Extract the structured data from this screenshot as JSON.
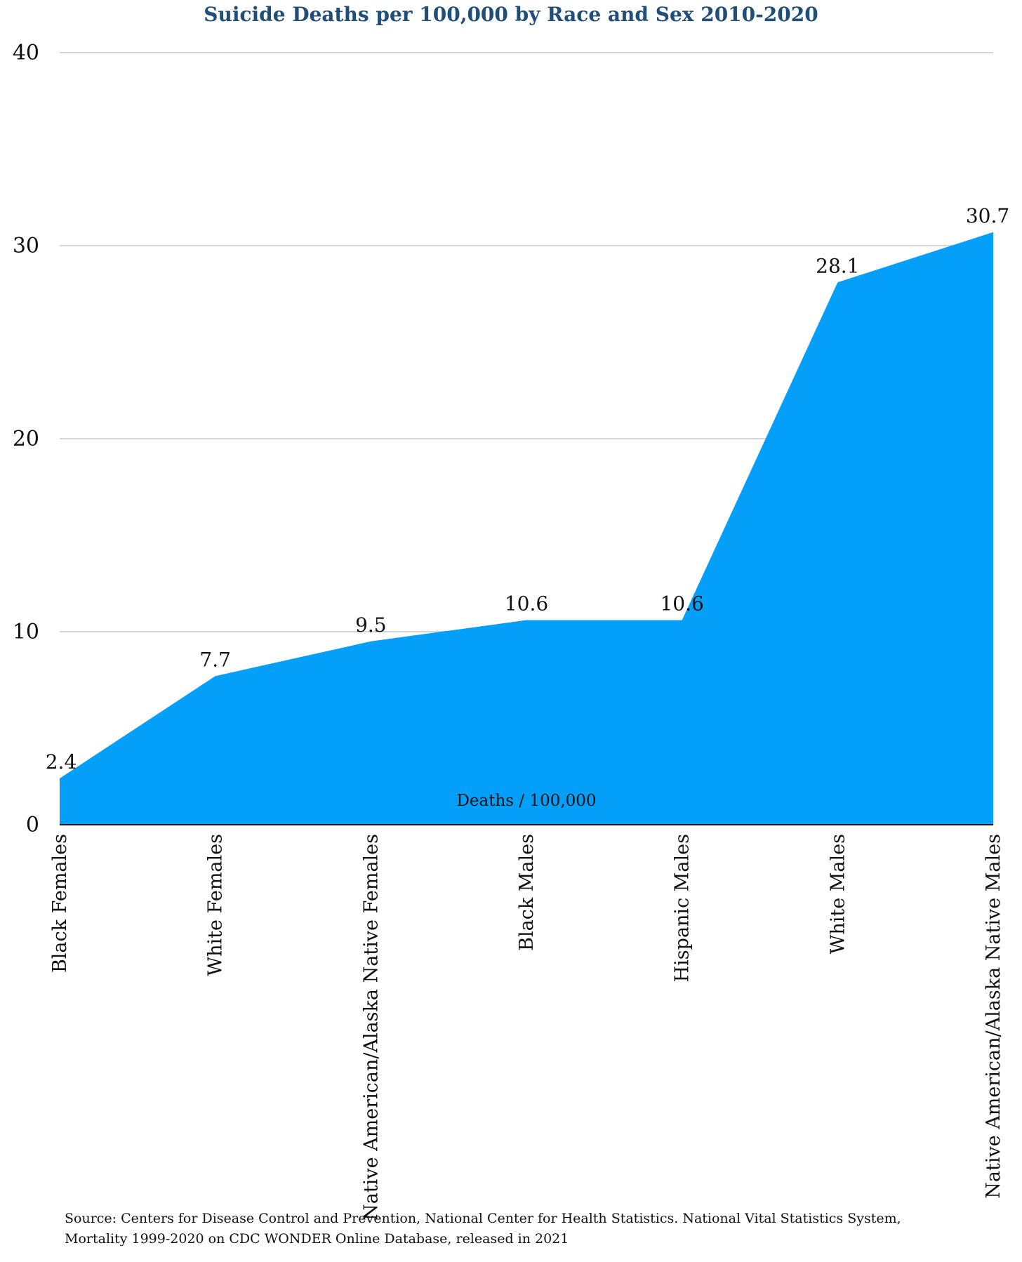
{
  "chart_data": {
    "type": "area",
    "title": "Suicide Deaths per 100,000 by Race and Sex 2010-2020",
    "categories": [
      "Black Females",
      "White Females",
      "Native American/Alaska Native Females",
      "Black Males",
      "Hispanic Males",
      "White Males",
      "Native American/Alaska Native Males"
    ],
    "series": [
      {
        "name": "Deaths / 100,000",
        "values": [
          2.4,
          7.7,
          9.5,
          10.6,
          10.6,
          28.1,
          30.7
        ]
      }
    ],
    "data_labels": [
      "2.4",
      "7.7",
      "9.5",
      "10.6",
      "10.6",
      "28.1",
      "30.7"
    ],
    "yticks": [
      "0",
      "10",
      "20",
      "30",
      "40"
    ],
    "ylim": [
      0,
      40
    ],
    "grid": true,
    "legend": "bottom-center",
    "color": "#039ff9",
    "gridline_color": "#c8c8c8",
    "title_color": "#1f4e79"
  },
  "source": {
    "line1": "Source: Centers for Disease Control and Prevention, National Center for Health Statistics. National Vital Statistics System,",
    "line2": "Mortality 1999-2020 on CDC WONDER Online Database, released in 2021"
  }
}
